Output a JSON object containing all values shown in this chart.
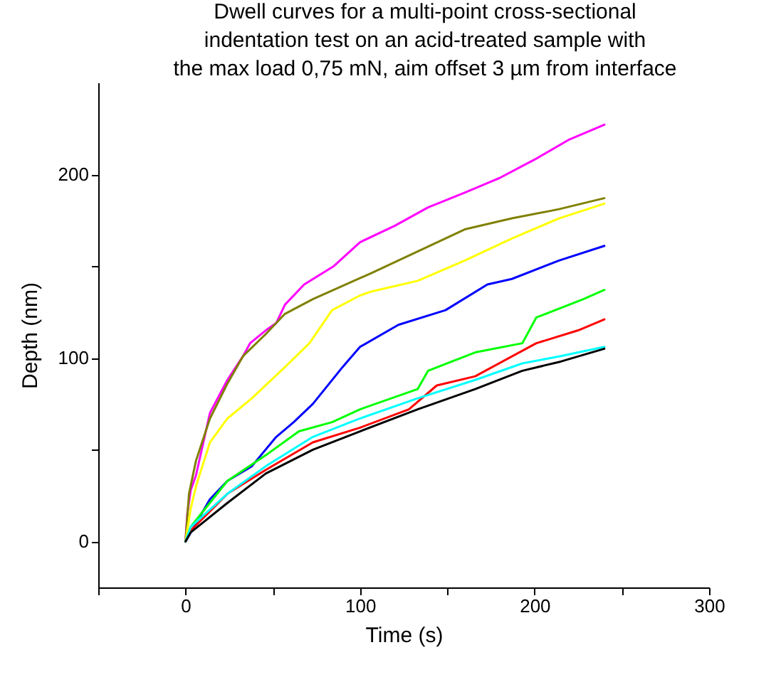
{
  "chart_data": {
    "type": "line",
    "title": "Dwell curves for a  multi-point cross-sectional\nindentation test on an acid-treated sample with\n the max load 0,75 mN, aim offset 3 µm from interface",
    "xlabel": "Time (s)",
    "ylabel": "Depth (nm)",
    "xlim": [
      -50,
      300
    ],
    "ylim": [
      -25,
      250
    ],
    "xticks": [
      {
        "value": -50,
        "label": null
      },
      0,
      {
        "value": 50,
        "label": null
      },
      100,
      {
        "value": 150,
        "label": null
      },
      200,
      {
        "value": 250,
        "label": null
      },
      300
    ],
    "yticks": [
      0,
      {
        "value": 50,
        "label": null
      },
      100,
      {
        "value": 150,
        "label": null
      },
      200
    ],
    "grid": false,
    "legend": false,
    "line_style": "solid",
    "marker": "none",
    "series": [
      {
        "color": "#ff00ff",
        "x": [
          0,
          1,
          3,
          6,
          14,
          24,
          33,
          37,
          46,
          52,
          57,
          68,
          85,
          100,
          120,
          139,
          160,
          180,
          200,
          220,
          240
        ],
        "values": [
          0,
          15,
          28,
          36,
          70,
          88,
          101,
          108,
          115,
          119,
          129,
          140,
          150,
          163,
          172,
          182,
          190,
          198,
          208,
          219,
          227
        ]
      },
      {
        "color": "#808000",
        "x": [
          0,
          2,
          6,
          14,
          24,
          33,
          46,
          57,
          73,
          106,
          133,
          160,
          187,
          214,
          240
        ],
        "values": [
          0,
          26,
          44,
          67,
          86,
          101,
          113,
          124,
          132,
          146,
          158,
          170,
          176,
          181,
          187
        ]
      },
      {
        "color": "#ffff00",
        "x": [
          0,
          3,
          6,
          14,
          24,
          38,
          57,
          71,
          84,
          100,
          106,
          133,
          160,
          187,
          214,
          240
        ],
        "values": [
          0,
          18,
          30,
          54,
          67,
          78,
          95,
          108,
          126,
          134,
          136,
          142,
          153,
          165,
          176,
          184
        ]
      },
      {
        "color": "#0000ff",
        "x": [
          0,
          14,
          24,
          38,
          52,
          62,
          73,
          90,
          100,
          122,
          149,
          173,
          187,
          214,
          240
        ],
        "values": [
          0,
          23,
          33,
          41,
          57,
          65,
          75,
          95,
          106,
          118,
          126,
          140,
          143,
          153,
          161
        ]
      },
      {
        "color": "#00ff00",
        "x": [
          0,
          3,
          24,
          46,
          65,
          84,
          100,
          133,
          139,
          166,
          193,
          201,
          228,
          240
        ],
        "values": [
          0,
          8,
          33,
          47,
          60,
          65,
          72,
          83,
          93,
          103,
          108,
          122,
          132,
          137
        ]
      },
      {
        "color": "#ff0000",
        "x": [
          0,
          3,
          24,
          46,
          73,
          100,
          128,
          144,
          166,
          201,
          225,
          240
        ],
        "values": [
          0,
          6,
          26,
          39,
          54,
          62,
          72,
          85,
          90,
          108,
          115,
          121
        ]
      },
      {
        "color": "#00ffff",
        "x": [
          0,
          3,
          24,
          46,
          73,
          100,
          133,
          166,
          193,
          215,
          240
        ],
        "values": [
          0,
          8,
          26,
          41,
          57,
          67,
          78,
          88,
          97,
          101,
          106
        ]
      },
      {
        "color": "#000000",
        "x": [
          0,
          3,
          24,
          46,
          73,
          100,
          133,
          166,
          193,
          215,
          240
        ],
        "values": [
          0,
          5,
          21,
          37,
          50,
          60,
          72,
          83,
          93,
          98,
          105
        ]
      }
    ]
  }
}
